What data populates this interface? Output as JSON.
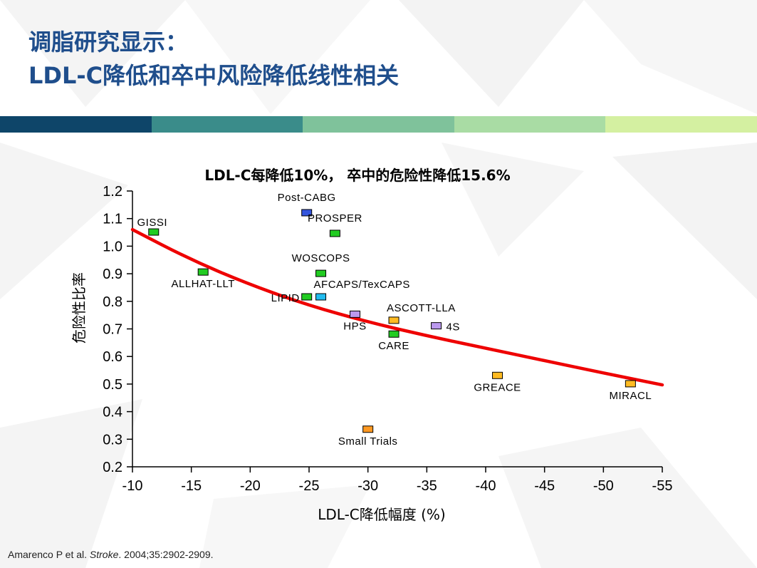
{
  "slide": {
    "title_line1": "调脂研究显示：",
    "title_line2": "LDL-C降低和卒中风险降低线性相关",
    "band_colors": [
      "#0e4569",
      "#3a8c8a",
      "#7fc29b",
      "#a9dca4",
      "#d4f0a1"
    ],
    "citation_authors": "Amarenco P et al.",
    "citation_journal": "Stroke",
    "citation_rest": ". 2004;35:2902-2909."
  },
  "chart_data": {
    "type": "scatter",
    "title": "LDL-C每降低10%， 卒中的危险性降低15.6%",
    "xlabel": "LDL-C降低幅度 (%)",
    "ylabel": "危险性比率",
    "xlim": [
      -10,
      -55
    ],
    "ylim": [
      0.2,
      1.2
    ],
    "x_ticks": [
      -10,
      -15,
      -20,
      -25,
      -30,
      -35,
      -40,
      -45,
      -50,
      -55
    ],
    "y_ticks": [
      0.2,
      0.3,
      0.4,
      0.5,
      0.6,
      0.7,
      0.8,
      0.9,
      1.0,
      1.1,
      1.2
    ],
    "y_tick_labels": [
      "0.2",
      "0.3",
      "0.4",
      "0.5",
      "0.6",
      "0.7",
      "0.8",
      "0.9",
      "1.0",
      "1.1",
      "1.2"
    ],
    "grid": false,
    "points": [
      {
        "label": "Post-CABG",
        "x": -24.8,
        "y": 1.12,
        "color": "#3355dd",
        "label_pos": "above"
      },
      {
        "label": "GISSI",
        "x": -11.8,
        "y": 1.05,
        "color": "#22cc22",
        "label_pos": "above-left"
      },
      {
        "label": "PROSPER",
        "x": -27.2,
        "y": 1.045,
        "color": "#22cc22",
        "label_pos": "above"
      },
      {
        "label": "ALLHAT-LLT",
        "x": -16.0,
        "y": 0.905,
        "color": "#22cc22",
        "label_pos": "below"
      },
      {
        "label": "WOSCOPS",
        "x": -26.0,
        "y": 0.9,
        "color": "#22cc22",
        "label_pos": "above"
      },
      {
        "label": "AFCAPS/TexCAPS",
        "x": -26.0,
        "y": 0.815,
        "color": "#22bbee",
        "label_pos": "above-right"
      },
      {
        "label": "LIPID",
        "x": -24.8,
        "y": 0.815,
        "color": "#22cc22",
        "label_pos": "left"
      },
      {
        "label": "HPS",
        "x": -28.9,
        "y": 0.752,
        "color": "#bb99ee",
        "label_pos": "below"
      },
      {
        "label": "ASCOTT-LLA",
        "x": -32.2,
        "y": 0.73,
        "color": "#ffbb22",
        "label_pos": "above-right"
      },
      {
        "label": "4S",
        "x": -35.8,
        "y": 0.71,
        "color": "#bb99ee",
        "label_pos": "right"
      },
      {
        "label": "CARE",
        "x": -32.2,
        "y": 0.68,
        "color": "#22cc22",
        "label_pos": "below"
      },
      {
        "label": "GREACE",
        "x": -41.0,
        "y": 0.53,
        "color": "#ffbb22",
        "label_pos": "below"
      },
      {
        "label": "MIRACL",
        "x": -52.3,
        "y": 0.5,
        "color": "#ffbb22",
        "label_pos": "below-left"
      },
      {
        "label": "Small Trials",
        "x": -30.0,
        "y": 0.335,
        "color": "#ff9922",
        "label_pos": "below"
      }
    ],
    "fit_curve": {
      "color": "#ee0000",
      "x": [
        -10,
        -15,
        -20,
        -25,
        -30,
        -35,
        -40,
        -45,
        -50,
        -55
      ],
      "y": [
        1.06,
        0.95,
        0.86,
        0.785,
        0.725,
        0.675,
        0.63,
        0.585,
        0.54,
        0.497
      ]
    }
  }
}
